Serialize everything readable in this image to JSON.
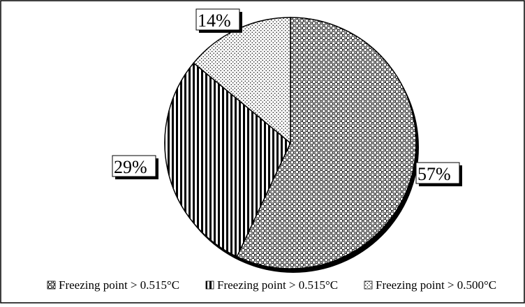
{
  "chart_data": {
    "type": "pie",
    "title": "",
    "slices": [
      {
        "label": "Freezing point > 0.515°C",
        "value": 57,
        "value_label": "57%",
        "pattern": "checker-dots"
      },
      {
        "label": "Freezing point > 0.515°C",
        "value": 29,
        "value_label": "29%",
        "pattern": "vertical-stripes"
      },
      {
        "label": "Freezing point > 0.500°C",
        "value": 14,
        "value_label": "14%",
        "pattern": "fine-dots"
      }
    ],
    "legend_position": "bottom",
    "start_angle": "12 o'clock, clockwise",
    "style": "3d-shadow, black-and-white patterns"
  }
}
